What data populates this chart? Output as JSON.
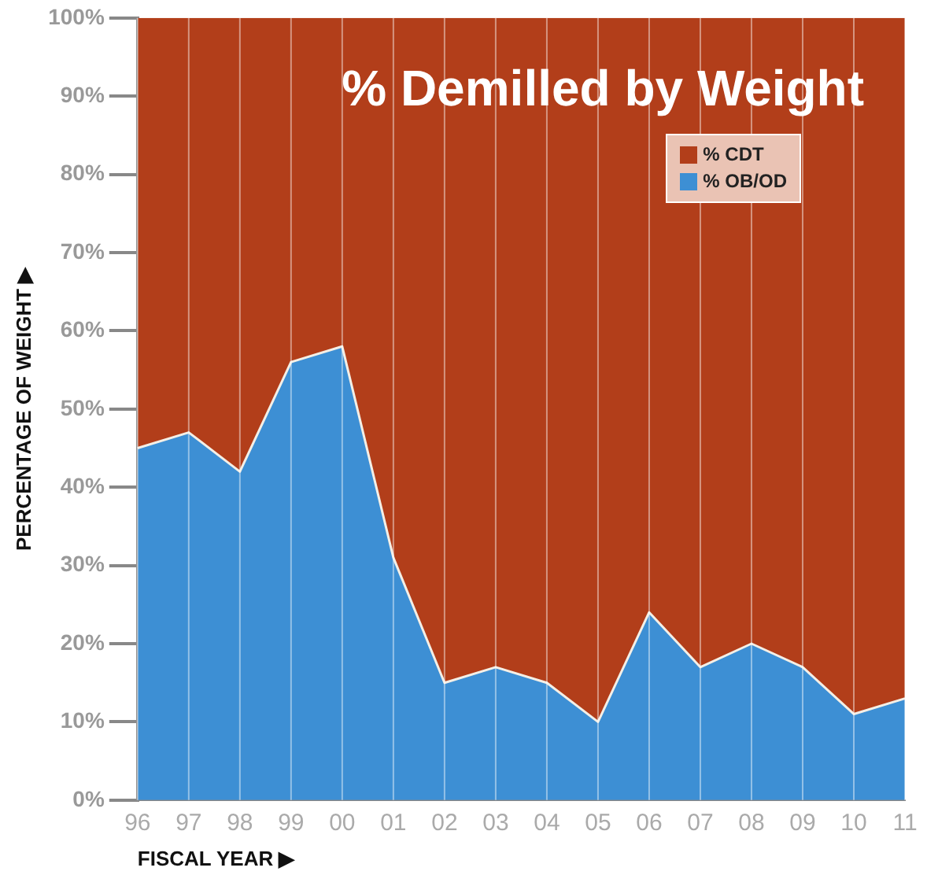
{
  "chart_data": {
    "type": "area",
    "title": "% Demilled by Weight",
    "xlabel": "FISCAL YEAR ▶",
    "ylabel": "PERCENTAGE OF WEIGHT ▶",
    "categories": [
      "96",
      "97",
      "98",
      "99",
      "00",
      "01",
      "02",
      "03",
      "04",
      "05",
      "06",
      "07",
      "08",
      "09",
      "10",
      "11"
    ],
    "stacked": true,
    "series": [
      {
        "name": "% OB/OD",
        "color": "#3d8fd4",
        "values": [
          45,
          47,
          42,
          56,
          58,
          31,
          15,
          17,
          15,
          10,
          24,
          17,
          20,
          17,
          11,
          13
        ]
      },
      {
        "name": "% CDT",
        "color": "#b23e1a",
        "values": [
          55,
          53,
          58,
          44,
          42,
          69,
          85,
          83,
          85,
          90,
          76,
          83,
          80,
          83,
          89,
          87
        ]
      }
    ],
    "ylim": [
      0,
      100
    ],
    "yticks": [
      {
        "value": 0,
        "label": "0%"
      },
      {
        "value": 10,
        "label": "10%"
      },
      {
        "value": 20,
        "label": "20%"
      },
      {
        "value": 30,
        "label": "30%"
      },
      {
        "value": 40,
        "label": "40%"
      },
      {
        "value": 50,
        "label": "50%"
      },
      {
        "value": 60,
        "label": "60%"
      },
      {
        "value": 70,
        "label": "70%"
      },
      {
        "value": 80,
        "label": "80%"
      },
      {
        "value": 90,
        "label": "90%"
      },
      {
        "value": 100,
        "label": "100%"
      }
    ],
    "grid": "x",
    "legend": "top right",
    "marker": "none",
    "line_style": "solid"
  }
}
